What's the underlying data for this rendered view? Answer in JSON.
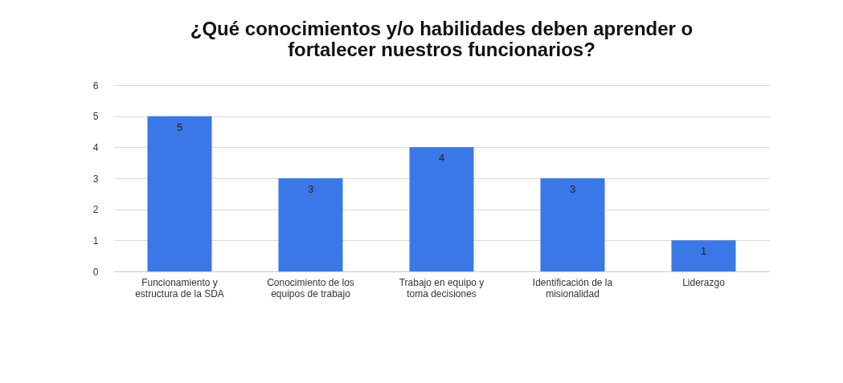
{
  "chart_data": {
    "type": "bar",
    "title": "¿Qué conocimientos y/o habilidades deben aprender o fortalecer nuestros funcionarios?",
    "categories": [
      "Funcionamiento y estructura de la SDA",
      "Conocimiento de los equipos de trabajo",
      "Trabajo en equipo y toma decisiones",
      "Identificación de la misionalidad",
      "Liderazgo"
    ],
    "values": [
      5,
      3,
      4,
      3,
      1
    ],
    "color": "#3b78e7",
    "ylim": [
      0,
      6
    ],
    "yticks": [
      0,
      1,
      2,
      3,
      4,
      5,
      6
    ],
    "grid": "y",
    "data_labels": true
  }
}
